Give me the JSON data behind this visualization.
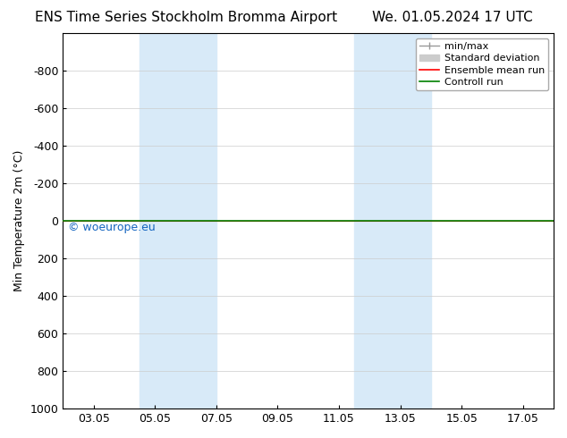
{
  "title_left": "ENS Time Series Stockholm Bromma Airport",
  "title_right": "We. 01.05.2024 17 UTC",
  "ylabel": "Min Temperature 2m (°C)",
  "ylim_top": -1000,
  "ylim_bottom": 1000,
  "yticks": [
    -800,
    -600,
    -400,
    -200,
    0,
    200,
    400,
    600,
    800,
    1000
  ],
  "xtick_labels": [
    "03.05",
    "05.05",
    "07.05",
    "09.05",
    "11.05",
    "13.05",
    "15.05",
    "17.05"
  ],
  "xtick_positions": [
    2,
    4,
    6,
    8,
    10,
    12,
    14,
    16
  ],
  "xlim": [
    1,
    17
  ],
  "shaded_regions": [
    {
      "xstart": 3.5,
      "xend": 5.0,
      "color": "#d8eaf8"
    },
    {
      "xstart": 5.0,
      "xend": 6.0,
      "color": "#d8eaf8"
    },
    {
      "xstart": 10.5,
      "xend": 12.0,
      "color": "#d8eaf8"
    },
    {
      "xstart": 12.0,
      "xend": 13.0,
      "color": "#d8eaf8"
    }
  ],
  "watermark": "© woeurope.eu",
  "watermark_color": "#1565c0",
  "background_color": "#ffffff",
  "grid_color": "#cccccc",
  "figsize": [
    6.34,
    4.9
  ],
  "dpi": 100,
  "font_size_title": 11,
  "font_size_axis": 9,
  "font_size_tick": 9,
  "font_size_legend": 8,
  "font_size_watermark": 9
}
